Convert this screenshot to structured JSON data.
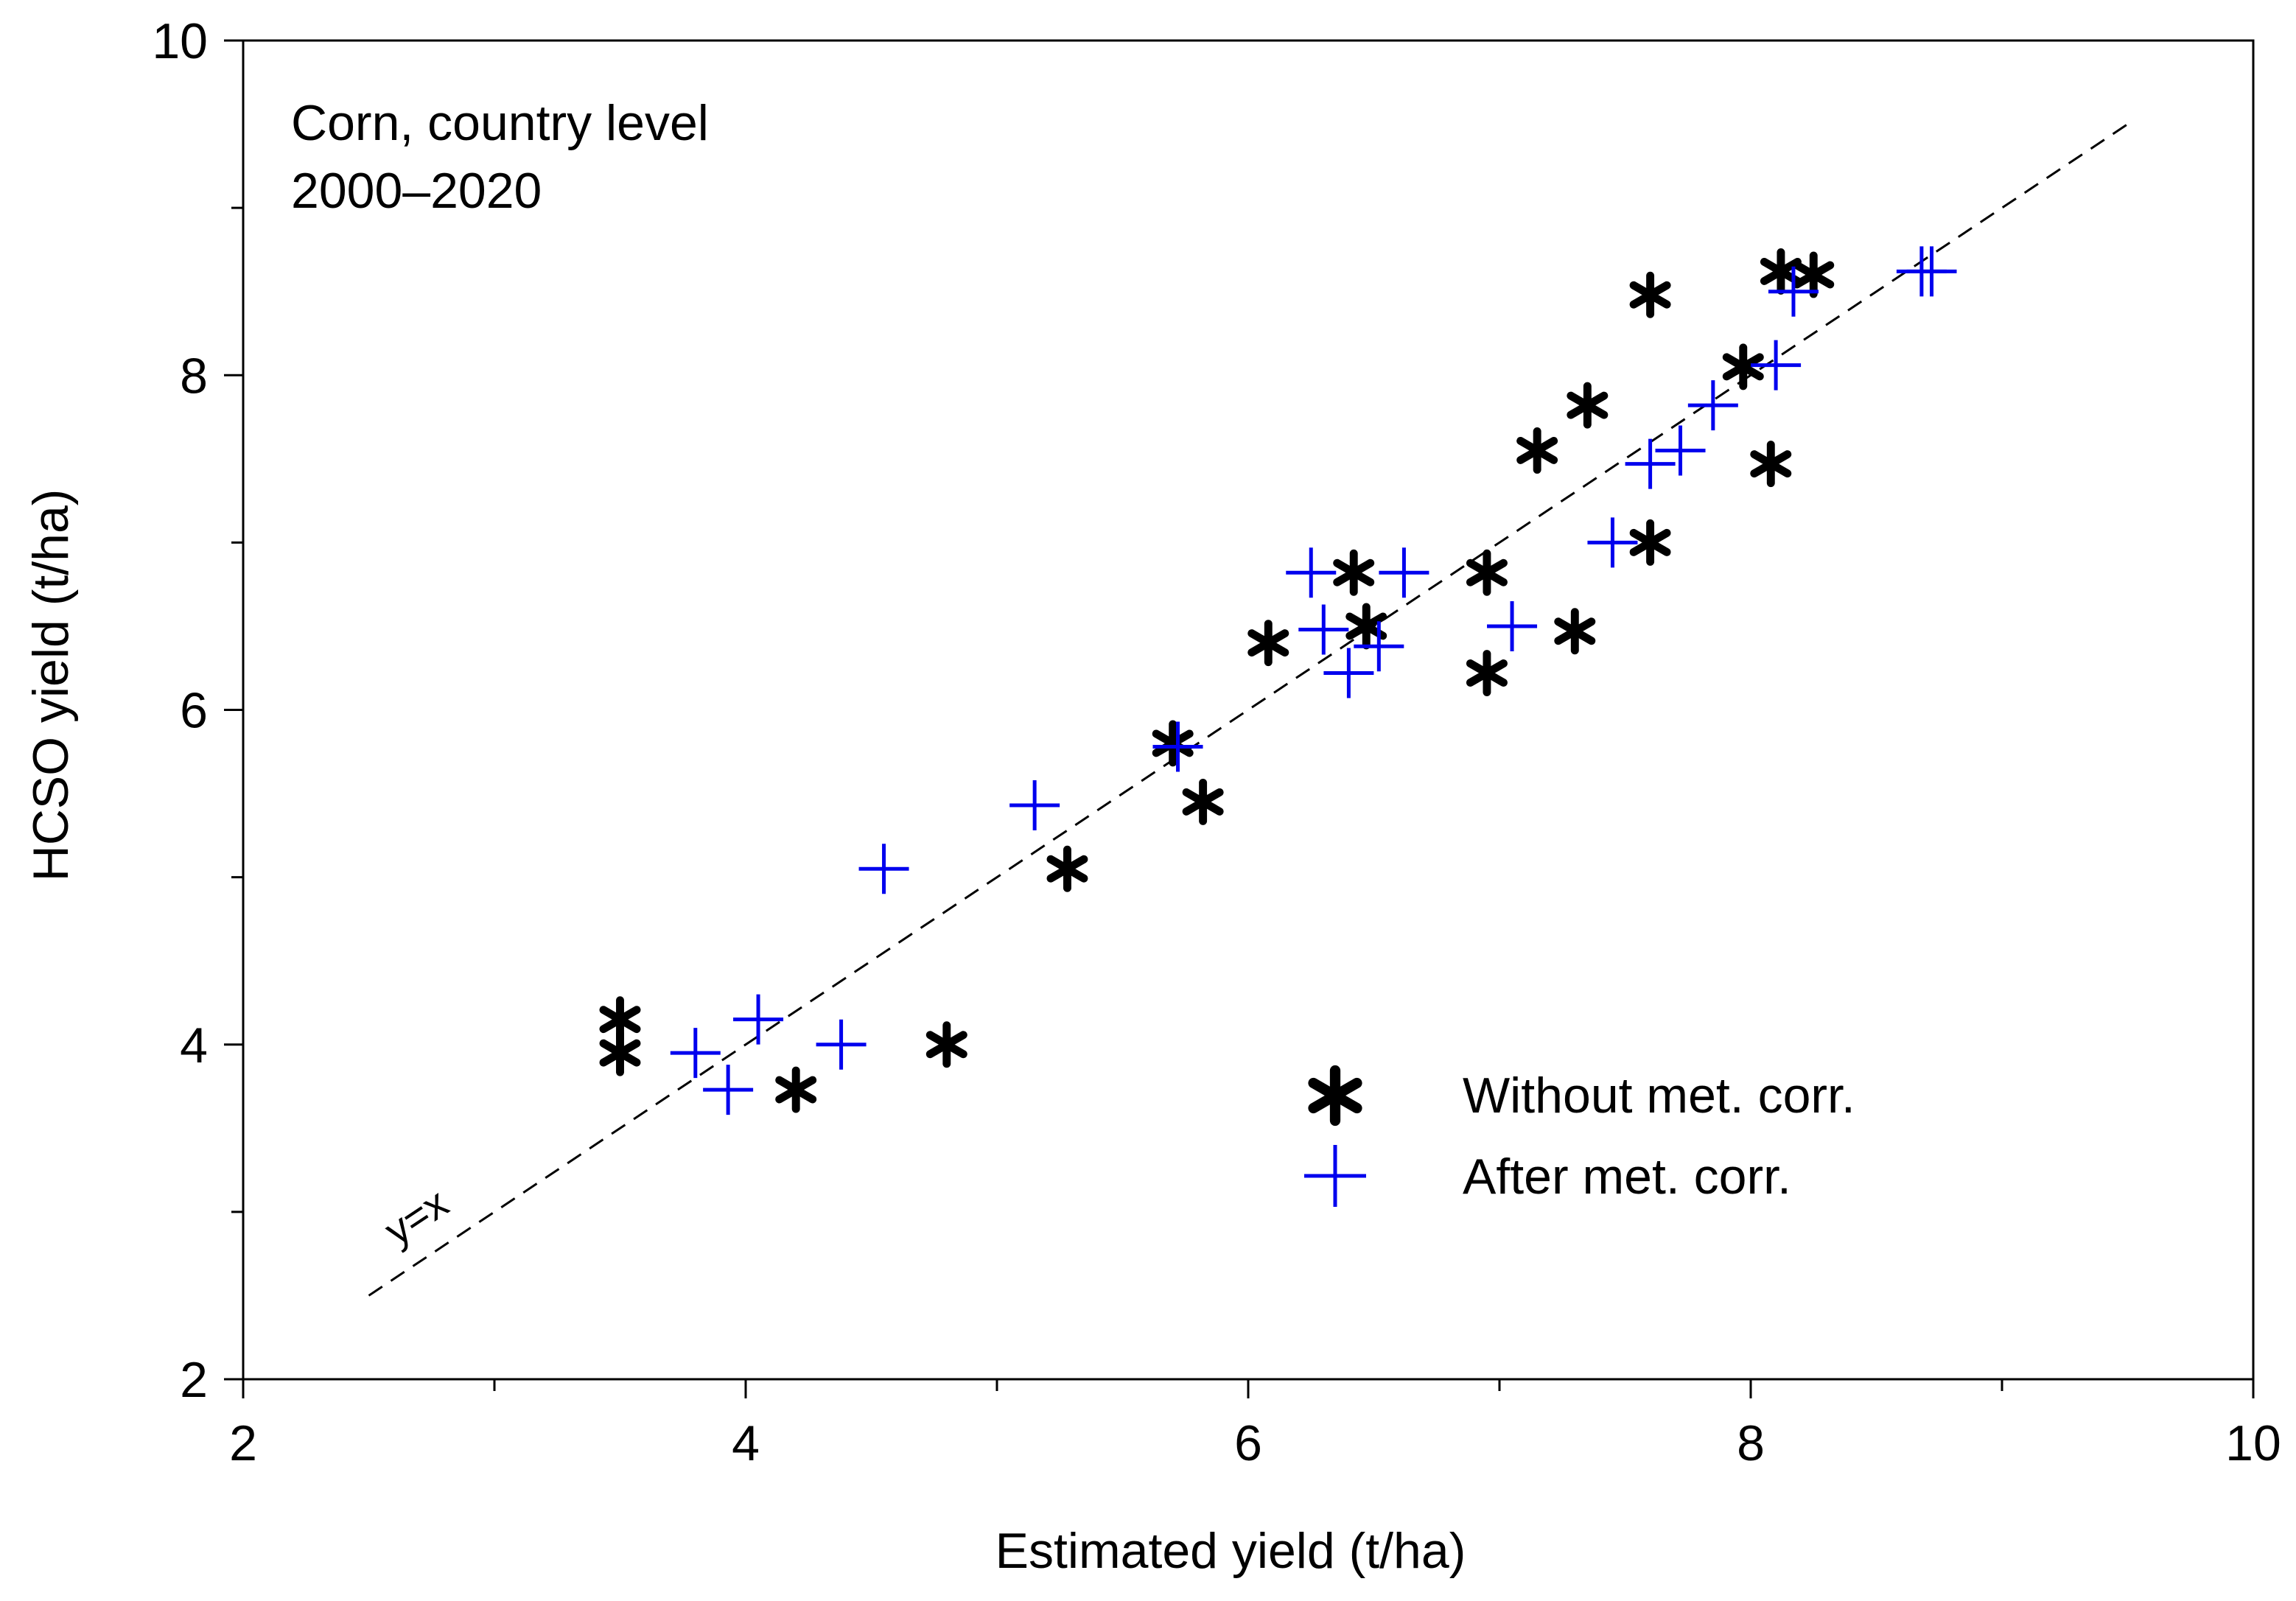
{
  "chart_data": {
    "type": "scatter",
    "title": "",
    "annotation_lines": [
      "Corn, country level",
      "2000–2020"
    ],
    "xlabel": "Estimated yield (t/ha)",
    "ylabel": "HCSO yield (t/ha)",
    "xlim": [
      2,
      10
    ],
    "ylim": [
      2,
      10
    ],
    "x_major_ticks": [
      2,
      4,
      6,
      8,
      10
    ],
    "x_minor_ticks": [
      3,
      5,
      7,
      9
    ],
    "y_major_ticks": [
      2,
      4,
      6,
      8,
      10
    ],
    "y_minor_ticks": [
      3,
      5,
      7,
      9
    ],
    "grid": false,
    "legend_position": "bottom-right",
    "reference_line": {
      "label": "y=x",
      "slope": 1,
      "intercept": 0,
      "x_range": [
        2.5,
        9.5
      ],
      "style": "dashed",
      "color": "#000000"
    },
    "series": [
      {
        "name": "Without met. corr.",
        "marker": "asterisk",
        "color": "#000000",
        "points": [
          {
            "x": 3.5,
            "y": 4.15
          },
          {
            "x": 3.5,
            "y": 3.95
          },
          {
            "x": 4.2,
            "y": 3.73
          },
          {
            "x": 4.8,
            "y": 4.0
          },
          {
            "x": 5.28,
            "y": 5.05
          },
          {
            "x": 5.7,
            "y": 5.8
          },
          {
            "x": 5.82,
            "y": 5.45
          },
          {
            "x": 6.08,
            "y": 6.4
          },
          {
            "x": 6.42,
            "y": 6.82
          },
          {
            "x": 6.47,
            "y": 6.5
          },
          {
            "x": 6.95,
            "y": 6.82
          },
          {
            "x": 6.95,
            "y": 6.22
          },
          {
            "x": 7.3,
            "y": 6.47
          },
          {
            "x": 7.15,
            "y": 7.55
          },
          {
            "x": 7.35,
            "y": 7.82
          },
          {
            "x": 7.6,
            "y": 8.48
          },
          {
            "x": 7.6,
            "y": 7.0
          },
          {
            "x": 7.97,
            "y": 8.05
          },
          {
            "x": 8.08,
            "y": 7.47
          },
          {
            "x": 8.12,
            "y": 8.62
          },
          {
            "x": 8.25,
            "y": 8.6
          }
        ]
      },
      {
        "name": "After met. corr.",
        "marker": "plus",
        "color": "#0000ee",
        "points": [
          {
            "x": 3.8,
            "y": 3.95
          },
          {
            "x": 3.93,
            "y": 3.73
          },
          {
            "x": 4.05,
            "y": 4.15
          },
          {
            "x": 4.38,
            "y": 4.0
          },
          {
            "x": 4.55,
            "y": 5.05
          },
          {
            "x": 5.15,
            "y": 5.43
          },
          {
            "x": 5.72,
            "y": 5.78
          },
          {
            "x": 6.25,
            "y": 6.82
          },
          {
            "x": 6.3,
            "y": 6.48
          },
          {
            "x": 6.4,
            "y": 6.22
          },
          {
            "x": 6.52,
            "y": 6.38
          },
          {
            "x": 6.62,
            "y": 6.82
          },
          {
            "x": 7.05,
            "y": 6.5
          },
          {
            "x": 7.45,
            "y": 7.0
          },
          {
            "x": 7.6,
            "y": 7.47
          },
          {
            "x": 7.72,
            "y": 7.55
          },
          {
            "x": 7.85,
            "y": 7.82
          },
          {
            "x": 8.1,
            "y": 8.06
          },
          {
            "x": 8.17,
            "y": 8.5
          },
          {
            "x": 8.68,
            "y": 8.62
          },
          {
            "x": 8.72,
            "y": 8.62
          }
        ]
      }
    ]
  }
}
